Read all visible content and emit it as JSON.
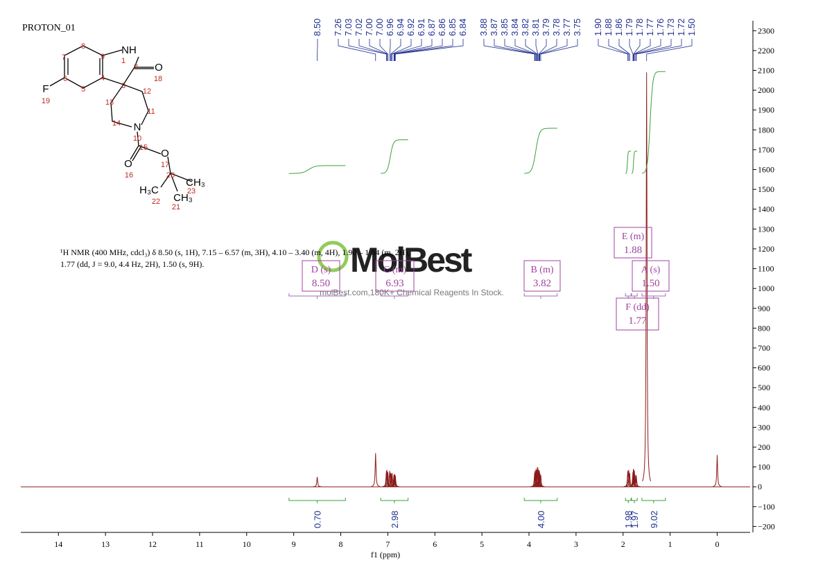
{
  "chart_data": {
    "type": "spectrum",
    "title": "PROTON_01",
    "x_label": "f1 (ppm)",
    "xlim": [
      14.8,
      -0.7
    ],
    "xticks": [
      14,
      13,
      12,
      11,
      10,
      9,
      8,
      7,
      6,
      5,
      4,
      3,
      2,
      1,
      0
    ],
    "ylim": [
      -230,
      2350
    ],
    "yticks": [
      {
        "value": -200,
        "label": "−200"
      },
      {
        "value": -100,
        "label": "−100"
      },
      0,
      100,
      200,
      300,
      400,
      500,
      600,
      700,
      800,
      900,
      1000,
      1100,
      1200,
      1300,
      1400,
      1500,
      1600,
      1700,
      1800,
      1900,
      2000,
      2100,
      2200,
      2300
    ],
    "color": "#8b1a1a",
    "peaks": {
      "x": [
        8.5,
        7.26,
        7.03,
        7.02,
        7.0,
        7.0,
        6.96,
        6.94,
        6.92,
        6.91,
        6.87,
        6.86,
        6.85,
        6.84,
        3.88,
        3.87,
        3.85,
        3.84,
        3.82,
        3.81,
        3.79,
        3.78,
        3.77,
        3.75,
        1.9,
        1.88,
        1.86,
        1.79,
        1.78,
        1.77,
        1.76,
        1.73,
        1.72,
        1.5,
        0
      ],
      "x_labels": [
        "8.50",
        "7.26",
        "7.03",
        "7.02",
        "7.00",
        "7.00",
        "6.96",
        "6.94",
        "6.92",
        "6.91",
        "6.87",
        "6.86",
        "6.85",
        "6.84",
        "3.88",
        "3.87",
        "3.85",
        "3.84",
        "3.82",
        "3.81",
        "3.79",
        "3.78",
        "3.77",
        "3.75",
        "1.90",
        "1.88",
        "1.86",
        "1.79",
        "1.78",
        "1.77",
        "1.76",
        "1.73",
        "1.72",
        "1.50",
        null
      ],
      "heights": [
        50,
        170,
        80,
        85,
        70,
        75,
        80,
        70,
        65,
        70,
        60,
        65,
        60,
        55,
        70,
        80,
        90,
        85,
        100,
        95,
        85,
        80,
        70,
        60,
        80,
        85,
        70,
        75,
        90,
        85,
        80,
        60,
        55,
        2090,
        160
      ]
    },
    "integrals": {
      "ranges": [
        [
          9.1,
          7.9
        ],
        [
          7.15,
          6.57
        ],
        [
          4.1,
          3.4
        ],
        [
          1.95,
          1.83
        ],
        [
          1.82,
          1.7
        ],
        [
          1.6,
          1.1
        ]
      ],
      "values": [
        0.7,
        2.98,
        4,
        1.98,
        1.97,
        9.02
      ],
      "value_labels": [
        "0.70",
        "2.98",
        "4.00",
        "1.98",
        "1.97",
        "9.02"
      ]
    },
    "multiplets": [
      {
        "label": "D (s)",
        "shift": {
          "value": 8.5,
          "label": "8.50"
        }
      },
      {
        "label": "C (m)",
        "shift": {
          "value": 6.93,
          "label": "6.93"
        }
      },
      {
        "label": "B (m)",
        "shift": {
          "value": 3.82,
          "label": "3.82"
        }
      },
      {
        "label": "E (m)",
        "shift": {
          "value": 1.88,
          "label": "1.88"
        }
      },
      {
        "label": "A (s)",
        "shift": {
          "value": 1.5,
          "label": "1.50"
        }
      },
      {
        "label": "F (dd)",
        "shift": {
          "value": 1.77,
          "label": "1.77"
        }
      }
    ],
    "description": "¹H NMR (400 MHz, cdcl₃) δ 8.50 (s, 1H), 7.15 – 6.57 (m, 3H), 4.10 – 3.40 (m, 4H), 1.90 – 1.84 (m, 2H), 1.77 (dd, J = 9.0, 4.4 Hz, 2H), 1.50 (s, 9H).",
    "watermark": {
      "brand": "MolBest",
      "tagline": "molBest.com,180K+ Chemical Reagents In Stock."
    },
    "structure": {
      "atom_labels": [
        "NH",
        "O",
        "F",
        "N",
        "O",
        "O",
        "CH₃",
        "H₃C",
        "CH₃"
      ],
      "atom_numbers": [
        1,
        2,
        3,
        4,
        5,
        6,
        7,
        8,
        9,
        10,
        11,
        12,
        13,
        14,
        15,
        16,
        17,
        18,
        19,
        20,
        21,
        22,
        23
      ]
    }
  }
}
